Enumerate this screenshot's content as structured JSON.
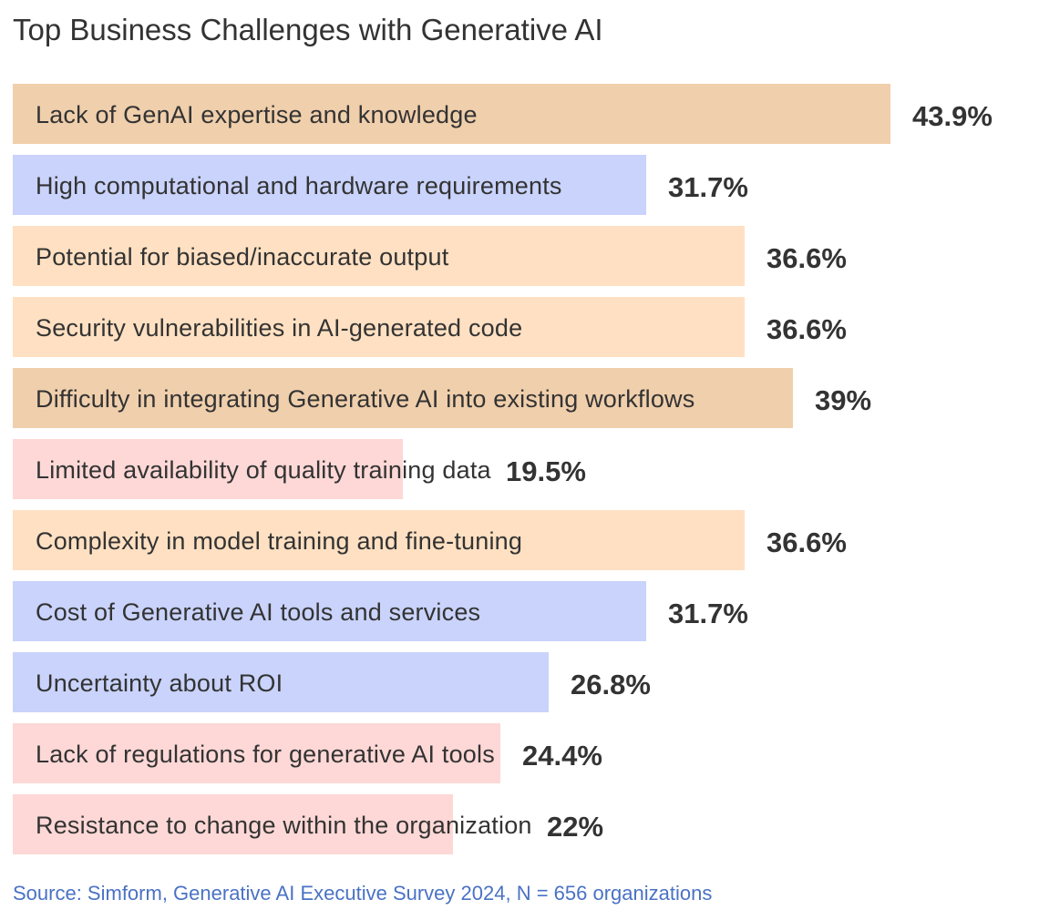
{
  "chart_data": {
    "type": "bar",
    "orientation": "horizontal",
    "title": "Top Business Challenges with Generative AI",
    "categories": [
      "Lack of GenAI expertise and knowledge",
      "High computational and hardware requirements",
      "Potential for biased/inaccurate output",
      "Security vulnerabilities in AI-generated code",
      "Difficulty in integrating Generative AI into existing workflows",
      "Limited availability of quality training data",
      "Complexity in model training and fine-tuning",
      "Cost of Generative AI tools and services",
      "Uncertainty about ROI",
      "Lack of regulations for generative AI tools",
      "Resistance to change within the organization"
    ],
    "values": [
      43.9,
      31.7,
      36.6,
      36.6,
      39,
      19.5,
      36.6,
      31.7,
      26.8,
      24.4,
      22
    ],
    "value_labels": [
      "43.9%",
      "31.7%",
      "36.6%",
      "36.6%",
      "39%",
      "19.5%",
      "36.6%",
      "31.7%",
      "26.8%",
      "24.4%",
      "22%"
    ],
    "bar_colors": [
      "#f0cfac",
      "#c9d3fb",
      "#ffe0c2",
      "#ffe0c2",
      "#f0cfac",
      "#fdd8d6",
      "#ffe0c2",
      "#c9d3fb",
      "#c9d3fb",
      "#fdd8d6",
      "#fdd8d6"
    ],
    "xlim": [
      0,
      44
    ],
    "xlabel": "",
    "ylabel": "",
    "grid": false,
    "legend": "none"
  },
  "footer": {
    "source": "Source: Simform, Generative AI Executive Survey 2024, N = 656 organizations"
  }
}
